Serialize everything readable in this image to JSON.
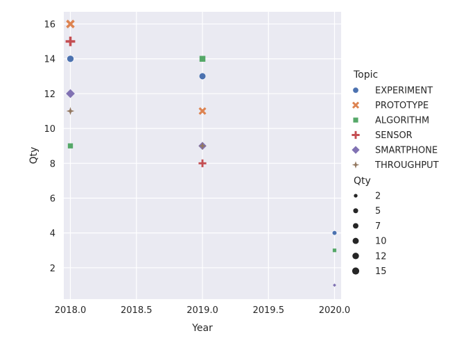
{
  "chart_data": {
    "type": "scatter",
    "xlabel": "Year",
    "ylabel": "Qty",
    "xlim": [
      2017.95,
      2020.05
    ],
    "ylim": [
      0.2,
      16.7
    ],
    "x_ticks": [
      2018.0,
      2018.5,
      2019.0,
      2019.5,
      2020.0
    ],
    "x_tick_labels": [
      "2018.0",
      "2018.5",
      "2019.0",
      "2019.5",
      "2020.0"
    ],
    "y_ticks": [
      2,
      4,
      6,
      8,
      10,
      12,
      14,
      16
    ],
    "y_tick_labels": [
      "2",
      "4",
      "6",
      "8",
      "10",
      "12",
      "14",
      "16"
    ],
    "grid": true,
    "legend_placement": "right",
    "hue_legend_title": "Topic",
    "size_legend_title": "Qty",
    "size_legend_values": [
      2,
      5,
      7,
      10,
      12,
      15
    ],
    "size_legend_labels": [
      "2",
      "5",
      "7",
      "10",
      "12",
      "15"
    ],
    "series": [
      {
        "name": "EXPERIMENT",
        "color": "#4c72b0",
        "marker": "circle",
        "points": [
          {
            "x": 2018,
            "y": 14
          },
          {
            "x": 2019,
            "y": 13
          },
          {
            "x": 2020,
            "y": 4
          }
        ]
      },
      {
        "name": "PROTOTYPE",
        "color": "#dd8452",
        "marker": "x",
        "points": [
          {
            "x": 2018,
            "y": 16
          },
          {
            "x": 2019,
            "y": 11
          }
        ]
      },
      {
        "name": "ALGORITHM",
        "color": "#55a868",
        "marker": "square",
        "points": [
          {
            "x": 2018,
            "y": 9
          },
          {
            "x": 2019,
            "y": 14
          },
          {
            "x": 2020,
            "y": 3
          }
        ]
      },
      {
        "name": "SENSOR",
        "color": "#c44e52",
        "marker": "plus",
        "points": [
          {
            "x": 2018,
            "y": 15
          },
          {
            "x": 2019,
            "y": 8
          }
        ]
      },
      {
        "name": "SMARTPHONE",
        "color": "#8172b3",
        "marker": "diamond",
        "points": [
          {
            "x": 2018,
            "y": 12
          },
          {
            "x": 2019,
            "y": 9
          },
          {
            "x": 2020,
            "y": 1
          }
        ]
      },
      {
        "name": "THROUGHPUT",
        "color": "#937860",
        "marker": "star",
        "points": [
          {
            "x": 2018,
            "y": 11
          },
          {
            "x": 2019,
            "y": 9
          }
        ]
      }
    ]
  },
  "colors": {
    "plot_background": "#eaeaf2",
    "grid": "#ffffff",
    "text": "#262626",
    "size_legend_marker": "#262626"
  }
}
